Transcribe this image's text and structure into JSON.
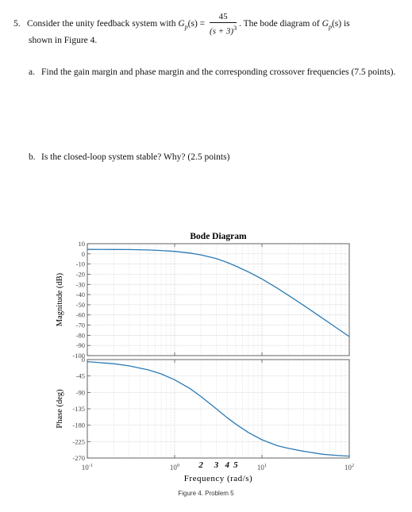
{
  "problem": {
    "number": "5.",
    "intro_before": "Consider the unity feedback system with",
    "G_symbol": "G",
    "G_sub": "p",
    "G_arg": "(s) =",
    "numerator": "45",
    "denominator_base": "(s + 3)",
    "denominator_exp": "3",
    "intro_after": ". The bode diagram of",
    "G2_arg": "(s) is",
    "line2": "shown in Figure 4."
  },
  "part_a": {
    "label": "a.",
    "text": "Find the gain margin and phase margin and the corresponding crossover frequencies (7.5 points)."
  },
  "part_b": {
    "label": "b.",
    "text": "Is the closed-loop system stable? Why? (2.5 points)"
  },
  "figure": {
    "caption": "Figure 4. Problem 5"
  },
  "chart_data": {
    "type": "line",
    "title": "Bode Diagram",
    "xlabel": "Frequency (rad/s)",
    "x_scale": "log",
    "xlim": [
      0.1,
      100
    ],
    "x_ticks": [
      {
        "value": 0.1,
        "base": "10",
        "exp": "-1"
      },
      {
        "value": 1,
        "base": "10",
        "exp": "0"
      },
      {
        "value": 10,
        "base": "10",
        "exp": "1"
      },
      {
        "value": 100,
        "base": "10",
        "exp": "2"
      }
    ],
    "handwritten_annotations": [
      {
        "text": "2",
        "x": 2
      },
      {
        "text": "3",
        "x": 3
      },
      {
        "text": "4",
        "x": 4
      },
      {
        "text": "5",
        "x": 5
      }
    ],
    "grid": true,
    "panels": [
      {
        "name": "magnitude",
        "ylabel": "Magnitude (dB)",
        "ylim": [
          -100,
          10
        ],
        "y_ticks": [
          10,
          0,
          -10,
          -20,
          -30,
          -40,
          -50,
          -60,
          -70,
          -80,
          -90,
          -100
        ],
        "series": [
          {
            "x": [
              0.1,
              0.2,
              0.3,
              0.5,
              0.7,
              1,
              1.5,
              2,
              3,
              4,
              5,
              7,
              10,
              15,
              20,
              30,
              50,
              70,
              100
            ],
            "y": [
              4.4,
              4.3,
              4.2,
              3.8,
              3.3,
              2.4,
              0.8,
              -1.0,
              -4.7,
              -8.4,
              -11.9,
              -17.8,
              -24.7,
              -33.8,
              -40.6,
              -50.6,
              -63.6,
              -72.2,
              -81.3
            ]
          }
        ]
      },
      {
        "name": "phase",
        "ylabel": "Phase (deg)",
        "ylim": [
          -270,
          0
        ],
        "y_ticks": [
          0,
          -45,
          -90,
          -135,
          -180,
          -225,
          -270
        ],
        "series": [
          {
            "x": [
              0.1,
              0.2,
              0.3,
              0.5,
              0.7,
              1,
              1.5,
              2,
              3,
              4,
              5,
              7,
              10,
              15,
              20,
              30,
              50,
              70,
              100
            ],
            "y": [
              -5.7,
              -11.4,
              -17.1,
              -28.3,
              -39.2,
              -55.3,
              -79.7,
              -101.3,
              -135.0,
              -159.4,
              -176.9,
              -200.1,
              -220.0,
              -236.3,
              -243.5,
              -251.4,
              -259.7,
              -262.6,
              -264.8
            ]
          }
        ]
      }
    ]
  }
}
